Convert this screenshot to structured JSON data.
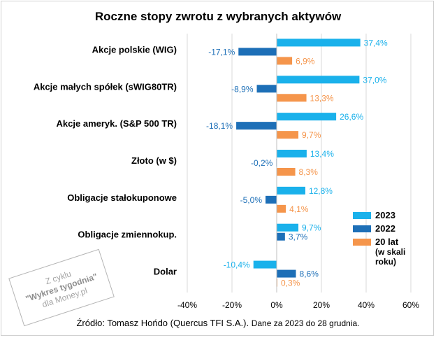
{
  "title": "Roczne stopy zwrotu z wybranych aktywów",
  "source_main": "Źródło: Tomasz Hońdo (Quercus TFI S.A.).",
  "source_note": "Dane za 2023 do 28 grudnia.",
  "stamp": {
    "line1": "Z cyklu",
    "line2": "\"Wykres tygodnia\"",
    "line3": "dla Money.pl"
  },
  "colors": {
    "2023": "#1ab1eb",
    "2022": "#1d6fb7",
    "20lat": "#f5954b",
    "grid": "#d9d9d9",
    "axis": "#bfbfbf"
  },
  "chart_data": {
    "type": "bar",
    "orientation": "horizontal",
    "title": "Roczne stopy zwrotu z wybranych aktywów",
    "categories": [
      "Akcje polskie (WIG)",
      "Akcje małych spółek (sWIG80TR)",
      "Akcje ameryk. (S&P 500 TR)",
      "Złoto (w $)",
      "Obligacje stałokuponowe",
      "Obligacje zmiennokup.",
      "Dolar"
    ],
    "series": [
      {
        "name": "2023",
        "values": [
          37.4,
          37.0,
          26.6,
          13.4,
          12.8,
          9.7,
          -10.4
        ],
        "labels": [
          "37,4%",
          "37,0%",
          "26,6%",
          "13,4%",
          "12,8%",
          "9,7%",
          "-10,4%"
        ]
      },
      {
        "name": "2022",
        "values": [
          -17.1,
          -8.9,
          -18.1,
          -0.2,
          -5.0,
          3.7,
          8.6
        ],
        "labels": [
          "-17,1%",
          "-8,9%",
          "-18,1%",
          "-0,2%",
          "-5,0%",
          "3,7%",
          "8,6%"
        ]
      },
      {
        "name": "20 lat (w skali roku)",
        "values": [
          6.9,
          13.3,
          9.7,
          8.3,
          4.1,
          null,
          0.3
        ],
        "labels": [
          "6,9%",
          "13,3%",
          "9,7%",
          "8,3%",
          "4,1%",
          "",
          "0,3%"
        ]
      }
    ],
    "xlim": [
      -40,
      60
    ],
    "xticks": [
      -40,
      -20,
      0,
      20,
      40,
      60
    ],
    "xtick_labels": [
      "-40%",
      "-20%",
      "0%",
      "20%",
      "40%",
      "60%"
    ],
    "grid": true,
    "legend_position": "bottom-right"
  },
  "legend": {
    "item_2023": "2023",
    "item_2022": "2022",
    "item_20lat_line1": "20 lat",
    "item_20lat_line2": "(w skali",
    "item_20lat_line3": "roku)"
  }
}
